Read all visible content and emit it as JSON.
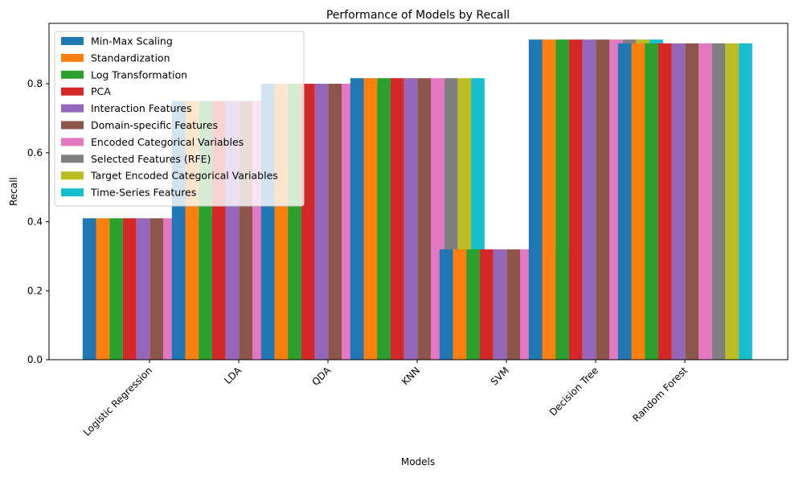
{
  "chart_data": {
    "type": "bar",
    "title": "Performance of Models by Recall",
    "xlabel": "Models",
    "ylabel": "Recall",
    "ylim": [
      0,
      0.975
    ],
    "yticks": [
      "0.0",
      "0.2",
      "0.4",
      "0.6",
      "0.8"
    ],
    "ytick_values": [
      0,
      0.2,
      0.4,
      0.6,
      0.8
    ],
    "grid": false,
    "legend_placement": "top-left",
    "categories": [
      "Logistic Regression",
      "LDA",
      "QDA",
      "KNN",
      "SVM",
      "Decision Tree",
      "Random Forest"
    ],
    "model_recall": [
      0.41,
      0.75,
      0.8,
      0.816,
      0.32,
      0.928,
      0.917
    ],
    "series": [
      {
        "name": "Min-Max Scaling",
        "color": "#1f77b4"
      },
      {
        "name": "Standardization",
        "color": "#ff7f0e"
      },
      {
        "name": "Log Transformation",
        "color": "#2ca02c"
      },
      {
        "name": "PCA",
        "color": "#d62728"
      },
      {
        "name": "Interaction Features",
        "color": "#9467bd"
      },
      {
        "name": "Domain-specific Features",
        "color": "#8c564b"
      },
      {
        "name": "Encoded Categorical Variables",
        "color": "#e377c2"
      },
      {
        "name": "Selected Features (RFE)",
        "color": "#7f7f7f"
      },
      {
        "name": "Target Encoded Categorical Variables",
        "color": "#bcbd22"
      },
      {
        "name": "Time-Series Features",
        "color": "#17becf"
      }
    ]
  }
}
